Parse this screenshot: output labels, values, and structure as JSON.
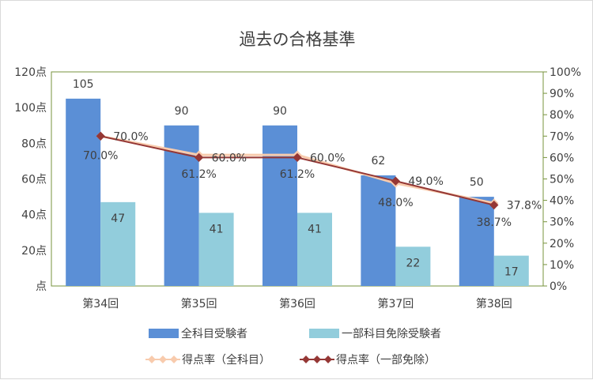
{
  "chart_data": {
    "type": "bar",
    "title": "過去の合格基準",
    "categories": [
      "第34回",
      "第35回",
      "第36回",
      "第37回",
      "第38回"
    ],
    "series": [
      {
        "name": "全科目受験者",
        "type": "bar",
        "axis": "left",
        "values": [
          105,
          90,
          90,
          62,
          50
        ],
        "color": "#5B8FD6"
      },
      {
        "name": "一部科目免除受験者",
        "type": "bar",
        "axis": "left",
        "values": [
          47,
          41,
          41,
          22,
          17
        ],
        "color": "#92CDDC"
      },
      {
        "name": "得点率（全科目）",
        "type": "line",
        "axis": "right",
        "values": [
          70.0,
          61.2,
          61.2,
          48.0,
          38.7
        ],
        "labels": [
          "70.0%",
          "61.2%",
          "61.2%",
          "48.0%",
          "38.7%"
        ],
        "color": "#F8CBAD"
      },
      {
        "name": "得点率（一部免除）",
        "type": "line",
        "axis": "right",
        "values": [
          70.0,
          60.0,
          60.0,
          49.0,
          37.8
        ],
        "labels": [
          "70.0%",
          "60.0%",
          "60.0%",
          "49.0%",
          "37.8%"
        ],
        "color": "#953735"
      }
    ],
    "y_left": {
      "min": 0,
      "max": 120,
      "step": 20,
      "tick_labels": [
        "点",
        "20点",
        "40点",
        "60点",
        "80点",
        "100点",
        "120点"
      ]
    },
    "y_right": {
      "min": 0,
      "max": 100,
      "step": 10,
      "tick_labels": [
        "0%",
        "10%",
        "20%",
        "30%",
        "40%",
        "50%",
        "60%",
        "70%",
        "80%",
        "90%",
        "100%"
      ]
    },
    "plot_border_color": "#77933C",
    "legend_position": "bottom",
    "grid": false
  }
}
